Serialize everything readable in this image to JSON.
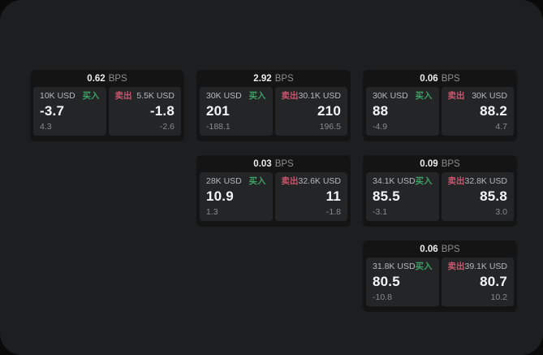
{
  "labels": {
    "bps_unit": "BPS",
    "buy": "买入",
    "sell": "卖出"
  },
  "colors": {
    "canvas": "#1d1e1f",
    "card": "#141414",
    "panel": "#242527",
    "buy": "#3da065",
    "sell": "#c9566e"
  },
  "cards": [
    {
      "bps": "0.62",
      "buy": {
        "amount": "10K USD",
        "price": "-3.7",
        "change": "4.3"
      },
      "sell": {
        "amount": "5.5K USD",
        "price": "-1.8",
        "change": "-2.6"
      }
    },
    {
      "bps": "2.92",
      "buy": {
        "amount": "30K USD",
        "price": "201",
        "change": "-188.1"
      },
      "sell": {
        "amount": "30.1K USD",
        "price": "210",
        "change": "196.5"
      }
    },
    {
      "bps": "0.06",
      "buy": {
        "amount": "30K USD",
        "price": "88",
        "change": "-4.9"
      },
      "sell": {
        "amount": "30K USD",
        "price": "88.2",
        "change": "4.7"
      }
    },
    {
      "bps": "0.03",
      "buy": {
        "amount": "28K USD",
        "price": "10.9",
        "change": "1.3"
      },
      "sell": {
        "amount": "32.6K USD",
        "price": "11",
        "change": "-1.8"
      }
    },
    {
      "bps": "0.09",
      "buy": {
        "amount": "34.1K USD",
        "price": "85.5",
        "change": "-3.1"
      },
      "sell": {
        "amount": "32.8K USD",
        "price": "85.8",
        "change": "3.0"
      }
    },
    {
      "bps": "0.06",
      "buy": {
        "amount": "31.8K USD",
        "price": "80.5",
        "change": "-10.8"
      },
      "sell": {
        "amount": "39.1K USD",
        "price": "80.7",
        "change": "10.2"
      }
    }
  ]
}
